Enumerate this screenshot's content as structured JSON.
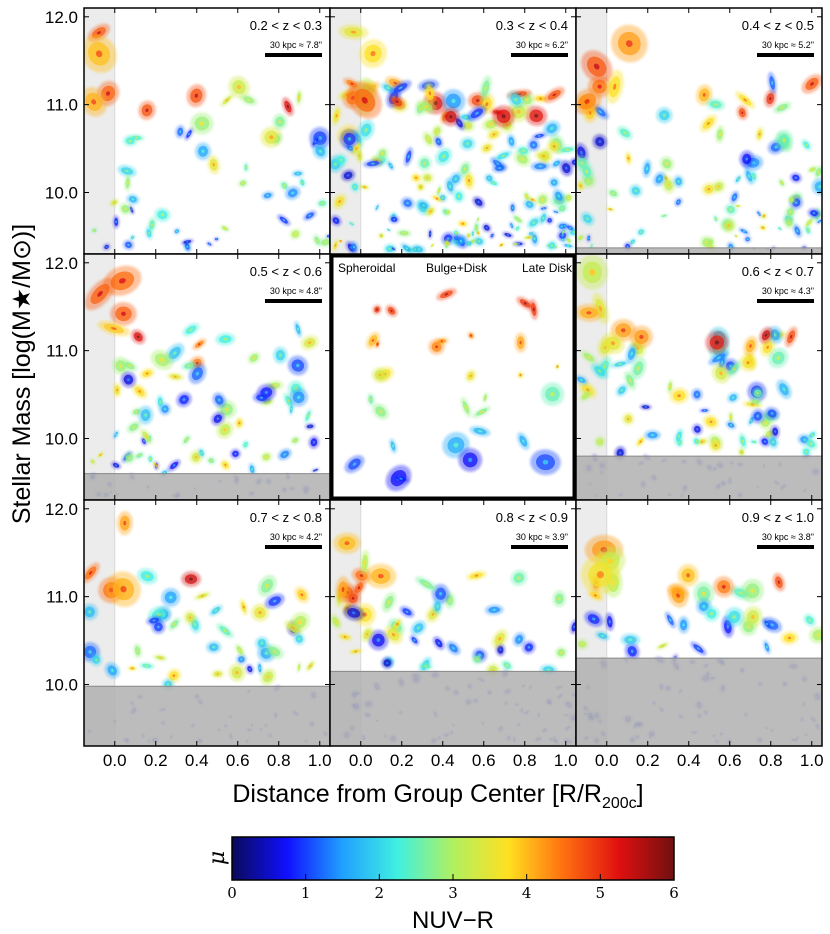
{
  "chart_data": {
    "type": "scatter",
    "description_axes": {
      "ylabel": "Stellar Mass [log(M★/M⊙)]",
      "xlabel": "Distance from Group Center [R/R",
      "xlabel_sub": "200c",
      "xlabel_close": "]",
      "xlim": [
        -0.15,
        1.05
      ],
      "ylim": [
        9.3,
        12.1
      ],
      "xticks": [
        0.0,
        0.2,
        0.4,
        0.6,
        0.8,
        1.0
      ],
      "xtick_labels": [
        "0.0",
        "0.2",
        "0.4",
        "0.6",
        "0.8",
        "1.0"
      ],
      "yticks": [
        10.0,
        11.0,
        12.0
      ],
      "ytick_labels": [
        "10.0",
        "11.0",
        "12.0"
      ]
    },
    "panels": [
      {
        "id": "z1",
        "row": 0,
        "col": 0,
        "label": "0.2 < z < 0.3",
        "scale": "30 kpc ≈ 7.8\"",
        "mass_limit": 9.3,
        "density": 55
      },
      {
        "id": "z2",
        "row": 0,
        "col": 1,
        "label": "0.3 < z < 0.4",
        "scale": "30 kpc ≈ 6.2\"",
        "mass_limit": 9.3,
        "density": 180
      },
      {
        "id": "z3",
        "row": 0,
        "col": 2,
        "label": "0.4 < z < 0.5",
        "scale": "30 kpc ≈ 5.2\"",
        "mass_limit": 9.37,
        "density": 95
      },
      {
        "id": "z4",
        "row": 1,
        "col": 0,
        "label": "0.5 < z < 0.6",
        "scale": "30 kpc ≈ 4.8\"",
        "mass_limit": 9.6,
        "density": 95
      },
      {
        "id": "legend",
        "row": 1,
        "col": 1,
        "legend": true,
        "categories": [
          "Spheroidal",
          "Bulge+Disk",
          "Late Disk"
        ]
      },
      {
        "id": "z5",
        "row": 1,
        "col": 2,
        "label": "0.6 < z < 0.7",
        "scale": "30 kpc ≈ 4.3\"",
        "mass_limit": 9.8,
        "density": 110
      },
      {
        "id": "z6",
        "row": 2,
        "col": 0,
        "label": "0.7 < z < 0.8",
        "scale": "30 kpc ≈ 4.2\"",
        "mass_limit": 9.98,
        "density": 80
      },
      {
        "id": "z7",
        "row": 2,
        "col": 1,
        "label": "0.8 < z < 0.9",
        "scale": "30 kpc ≈ 3.9\"",
        "mass_limit": 10.15,
        "density": 110
      },
      {
        "id": "z8",
        "row": 2,
        "col": 2,
        "label": "0.9 < z < 1.0",
        "scale": "30 kpc ≈ 3.8\"",
        "mass_limit": 10.3,
        "density": 95
      }
    ],
    "colorbar": {
      "label": "NUV−R",
      "side_label": "μ",
      "range": [
        0,
        6
      ],
      "ticks": [
        "0",
        "1",
        "2",
        "3",
        "4",
        "5",
        "6"
      ],
      "colormap": [
        "#0a0a5a",
        "#1010ff",
        "#20a0ff",
        "#40f0e0",
        "#b0f060",
        "#ffe020",
        "#ff7010",
        "#e01010",
        "#701010"
      ]
    },
    "colors": {
      "mass_limit_shade": "#b0b0b0",
      "center_band": "#ececec",
      "frame": "#000000"
    }
  }
}
